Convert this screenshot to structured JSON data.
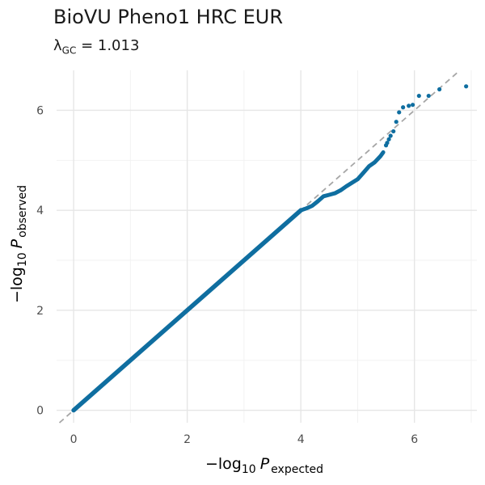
{
  "chart_data": {
    "type": "scatter",
    "title": "BioVU Pheno1 HRC EUR",
    "subtitle": {
      "symbol": "λ",
      "subscript": "GC",
      "equals": " = ",
      "value": "1.013"
    },
    "xlabel": {
      "prefix": "−log",
      "base": "10",
      "var": "P",
      "sub": "expected"
    },
    "ylabel": {
      "prefix": "−log",
      "base": "10",
      "var": "P",
      "sub": "observed"
    },
    "xlim": [
      -0.3,
      7.1
    ],
    "ylim": [
      -0.25,
      6.8
    ],
    "x_ticks": [
      0,
      2,
      4,
      6
    ],
    "y_ticks": [
      0,
      2,
      4,
      6
    ],
    "x_tick_labels": [
      "0",
      "2",
      "4",
      "6"
    ],
    "y_tick_labels": [
      "0",
      "2",
      "4",
      "6"
    ],
    "grid": true,
    "reference_line": "y = x",
    "colors": {
      "points": "#0f6ea0",
      "reference": "#a6a6a6",
      "grid_major": "#e6e6e6",
      "grid_minor": "#f2f2f2"
    },
    "series_dense_segment": {
      "x": [
        0,
        4.0
      ],
      "y": [
        0,
        4.0
      ]
    },
    "series_curve": [
      [
        4.0,
        4.0
      ],
      [
        4.1,
        4.04
      ],
      [
        4.2,
        4.09
      ],
      [
        4.3,
        4.18
      ],
      [
        4.4,
        4.28
      ],
      [
        4.5,
        4.31
      ],
      [
        4.6,
        4.34
      ],
      [
        4.7,
        4.4
      ],
      [
        4.8,
        4.48
      ],
      [
        4.9,
        4.55
      ],
      [
        5.0,
        4.62
      ],
      [
        5.1,
        4.75
      ],
      [
        5.2,
        4.88
      ],
      [
        5.3,
        4.96
      ],
      [
        5.4,
        5.08
      ],
      [
        5.45,
        5.16
      ]
    ],
    "series_tail": [
      [
        5.5,
        5.3
      ],
      [
        5.52,
        5.35
      ],
      [
        5.55,
        5.42
      ],
      [
        5.58,
        5.49
      ],
      [
        5.63,
        5.58
      ],
      [
        5.68,
        5.77
      ],
      [
        5.73,
        5.96
      ],
      [
        5.8,
        6.06
      ],
      [
        5.9,
        6.09
      ],
      [
        5.97,
        6.11
      ],
      [
        6.08,
        6.29
      ],
      [
        6.25,
        6.29
      ],
      [
        6.44,
        6.42
      ],
      [
        6.91,
        6.48
      ]
    ]
  }
}
